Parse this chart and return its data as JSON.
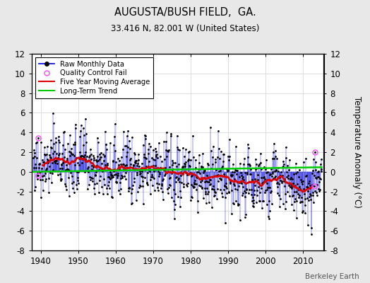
{
  "title": "AUGUSTA/BUSH FIELD,  GA.",
  "subtitle": "33.416 N, 82.001 W (United States)",
  "ylabel": "Temperature Anomaly (°C)",
  "xlabel_years": [
    1940,
    1950,
    1960,
    1970,
    1980,
    1990,
    2000,
    2010
  ],
  "xlim": [
    1937.5,
    2015.5
  ],
  "ylim": [
    -8,
    12
  ],
  "yticks": [
    -8,
    -6,
    -4,
    -2,
    0,
    2,
    4,
    6,
    8,
    10,
    12
  ],
  "watermark": "Berkeley Earth",
  "bg_color": "#e8e8e8",
  "plot_bg_color": "#ffffff",
  "raw_line_color": "#0000dd",
  "raw_marker_color": "#000000",
  "qc_fail_color": "#ff44ff",
  "moving_avg_color": "#dd0000",
  "trend_color": "#00cc00",
  "seed": 77,
  "n_months": 924,
  "start_year": 1938.0,
  "trend_slope": 0.006,
  "trend_intercept": 0.0
}
